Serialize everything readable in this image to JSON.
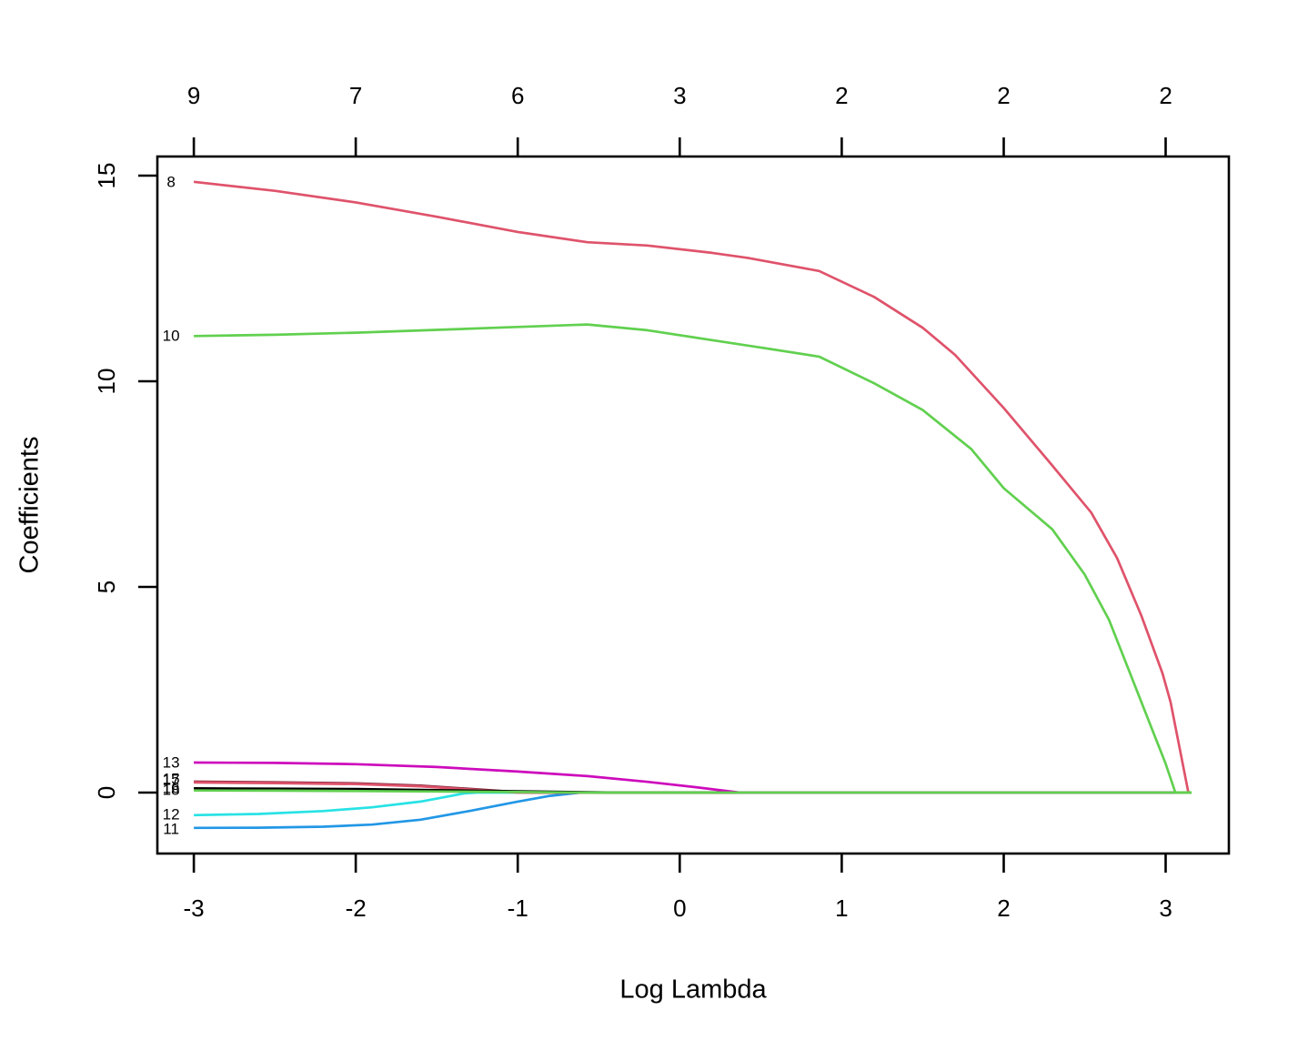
{
  "chart_data": {
    "type": "line",
    "title": "",
    "xlabel": "Log Lambda",
    "ylabel": "Coefficients",
    "grid": false,
    "legend": "none",
    "x_axis": {
      "ticks": [
        -3,
        -2,
        -1,
        0,
        1,
        2,
        3
      ],
      "range": [
        -3.225,
        3.39
      ]
    },
    "y_axis": {
      "ticks": [
        0,
        5,
        10,
        15
      ],
      "range": [
        -1.483,
        15.464
      ]
    },
    "top_axis": {
      "values": [
        9,
        7,
        6,
        3,
        2,
        2,
        2
      ]
    },
    "series": [
      {
        "label": "11",
        "color": "#2297E6",
        "label_value": -0.88,
        "points": [
          [
            -3,
            -0.86
          ],
          [
            -2.6,
            -0.855
          ],
          [
            -2.2,
            -0.83
          ],
          [
            -1.9,
            -0.78
          ],
          [
            -1.6,
            -0.66
          ],
          [
            -1.3,
            -0.45
          ],
          [
            -1.0,
            -0.22
          ],
          [
            -0.8,
            -0.08
          ],
          [
            -0.62,
            -0.005
          ],
          [
            -0.57,
            0
          ],
          [
            3.16,
            0
          ]
        ]
      },
      {
        "label": "12",
        "color": "#28E2E5",
        "label_value": -0.53,
        "points": [
          [
            -3,
            -0.55
          ],
          [
            -2.6,
            -0.52
          ],
          [
            -2.2,
            -0.45
          ],
          [
            -1.9,
            -0.36
          ],
          [
            -1.6,
            -0.22
          ],
          [
            -1.45,
            -0.11
          ],
          [
            -1.33,
            -0.02
          ],
          [
            -1.25,
            0
          ],
          [
            3.16,
            0
          ]
        ]
      },
      {
        "label": "15",
        "color": "#8B2A3F",
        "label_value": 0.33,
        "points": [
          [
            -3,
            0.265
          ],
          [
            -2.5,
            0.25
          ],
          [
            -2,
            0.225
          ],
          [
            -1.6,
            0.17
          ],
          [
            -1.3,
            0.09
          ],
          [
            -1.0,
            0.01
          ],
          [
            -0.9,
            0
          ],
          [
            3.16,
            0
          ]
        ]
      },
      {
        "label": "17",
        "color": "#DF536B",
        "label_value": 0.3,
        "points": [
          [
            -3,
            0.245
          ],
          [
            -2.5,
            0.23
          ],
          [
            -2,
            0.205
          ],
          [
            -1.6,
            0.15
          ],
          [
            -1.3,
            0.075
          ],
          [
            -1.0,
            0
          ],
          [
            3.16,
            0
          ]
        ]
      },
      {
        "label": "16",
        "color": "#000000",
        "label_value": 0.12,
        "points": [
          [
            -3,
            0.1
          ],
          [
            -2.5,
            0.095
          ],
          [
            -2,
            0.085
          ],
          [
            -1.5,
            0.06
          ],
          [
            -1.0,
            0.03
          ],
          [
            -0.57,
            0.008
          ],
          [
            -0.4,
            0
          ],
          [
            3.16,
            0
          ]
        ]
      },
      {
        "label": "13",
        "color": "#CD0BBC",
        "label_value": 0.73,
        "points": [
          [
            -3,
            0.73
          ],
          [
            -2.5,
            0.72
          ],
          [
            -2,
            0.69
          ],
          [
            -1.5,
            0.62
          ],
          [
            -1.0,
            0.51
          ],
          [
            -0.57,
            0.4
          ],
          [
            -0.2,
            0.26
          ],
          [
            0.1,
            0.13
          ],
          [
            0.37,
            0
          ],
          [
            3.16,
            0
          ]
        ]
      },
      {
        "label": "8",
        "color": "#DF536B",
        "label_value": 14.85,
        "points": [
          [
            -3,
            14.85
          ],
          [
            -2.5,
            14.63
          ],
          [
            -2,
            14.35
          ],
          [
            -1.5,
            14.0
          ],
          [
            -1.0,
            13.63
          ],
          [
            -0.57,
            13.38
          ],
          [
            -0.2,
            13.3
          ],
          [
            0.2,
            13.12
          ],
          [
            0.42,
            13.0
          ],
          [
            0.86,
            12.68
          ],
          [
            1.2,
            12.05
          ],
          [
            1.5,
            11.3
          ],
          [
            1.7,
            10.64
          ],
          [
            2.0,
            9.35
          ],
          [
            2.3,
            7.95
          ],
          [
            2.54,
            6.81
          ],
          [
            2.7,
            5.7
          ],
          [
            2.85,
            4.3
          ],
          [
            2.98,
            2.9
          ],
          [
            3.03,
            2.2
          ],
          [
            3.14,
            0
          ],
          [
            3.16,
            0
          ]
        ]
      },
      {
        "label": "10",
        "color": "#61D04F",
        "label_value": 11.1,
        "points": [
          [
            -3,
            11.1
          ],
          [
            -2.5,
            11.13
          ],
          [
            -2,
            11.18
          ],
          [
            -1.5,
            11.25
          ],
          [
            -1.0,
            11.32
          ],
          [
            -0.57,
            11.38
          ],
          [
            -0.2,
            11.24
          ],
          [
            0.2,
            11.0
          ],
          [
            0.5,
            10.82
          ],
          [
            0.86,
            10.6
          ],
          [
            1.2,
            9.95
          ],
          [
            1.5,
            9.3
          ],
          [
            1.8,
            8.35
          ],
          [
            2.0,
            7.4
          ],
          [
            2.3,
            6.4
          ],
          [
            2.5,
            5.3
          ],
          [
            2.65,
            4.2
          ],
          [
            2.77,
            3.0
          ],
          [
            2.9,
            1.7
          ],
          [
            3.0,
            0.7
          ],
          [
            3.06,
            0
          ],
          [
            3.16,
            0
          ]
        ]
      },
      {
        "label": "18",
        "color": "#61D04F",
        "label_value": 0.07,
        "points": [
          [
            -3,
            0.05
          ],
          [
            -2.5,
            0.045
          ],
          [
            -2,
            0.038
          ],
          [
            -1.5,
            0.025
          ],
          [
            -1.0,
            0.012
          ],
          [
            -0.57,
            0
          ],
          [
            3.16,
            0
          ]
        ]
      }
    ]
  }
}
